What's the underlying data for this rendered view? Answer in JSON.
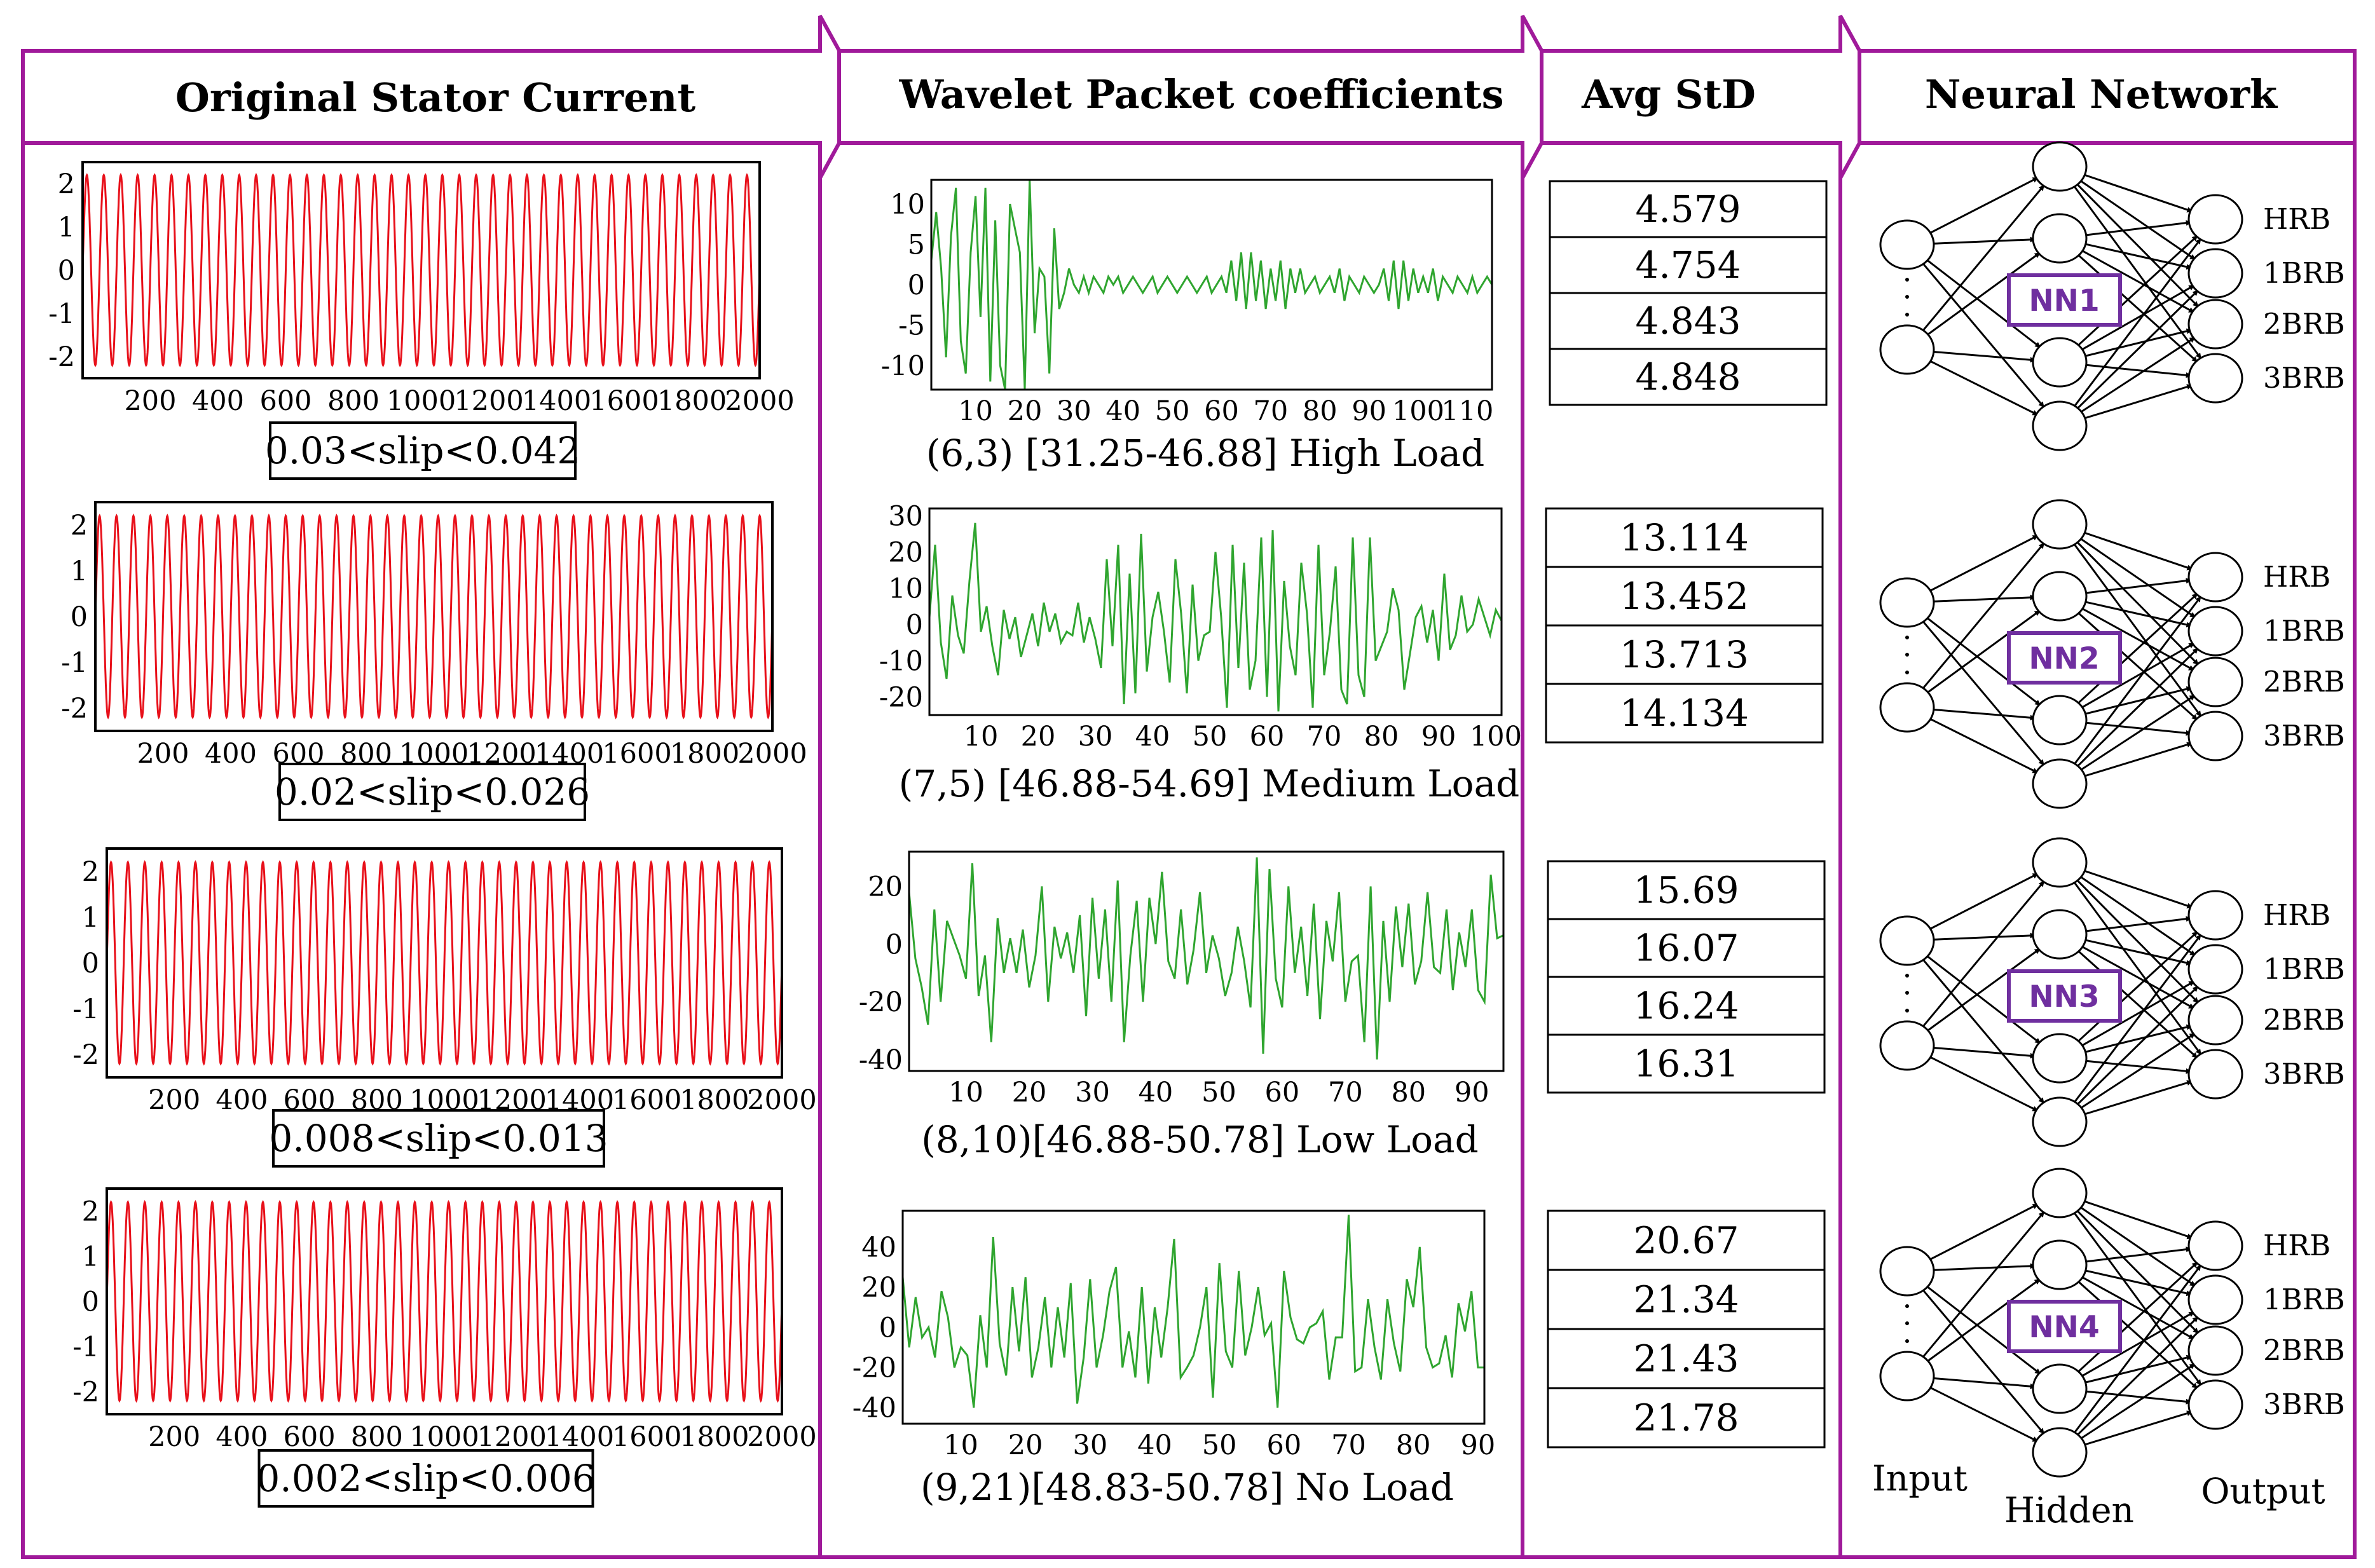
{
  "headers": {
    "col1": "Original Stator Current",
    "col2": "Wavelet Packet coefficients",
    "col3": "Avg StD",
    "col4": "Neural Network"
  },
  "colors": {
    "frame": "#a01a9a",
    "current_trace": "#e8101a",
    "wavelet_trace": "#2fa52f",
    "nn_box": "#6f2f9f"
  },
  "current_plots": [
    {
      "caption": "0.03<slip<0.042",
      "y_ticks": [
        "2",
        "1",
        "0",
        "-1",
        "-2"
      ],
      "x_ticks": [
        "200",
        "400",
        "600",
        "800",
        "1000",
        "1200",
        "1400",
        "1600",
        "1800",
        "2000"
      ],
      "chart_data": {
        "type": "line",
        "signal": "sinusoid",
        "amplitude": 2.2,
        "xlim": [
          0,
          2000
        ],
        "ylim": [
          -2.5,
          2.5
        ],
        "cycles": 40
      }
    },
    {
      "caption": "0.02<slip<0.026",
      "y_ticks": [
        "2",
        "1",
        "0",
        "-1",
        "-2"
      ],
      "x_ticks": [
        "200",
        "400",
        "600",
        "800",
        "1000",
        "1200",
        "1400",
        "1600",
        "1800",
        "2000"
      ],
      "chart_data": {
        "type": "line",
        "signal": "sinusoid",
        "amplitude": 2.2,
        "xlim": [
          0,
          2000
        ],
        "ylim": [
          -2.5,
          2.5
        ],
        "cycles": 40
      }
    },
    {
      "caption": "0.008<slip<0.013",
      "y_ticks": [
        "2",
        "1",
        "0",
        "-1",
        "-2"
      ],
      "x_ticks": [
        "200",
        "400",
        "600",
        "800",
        "1000",
        "1200",
        "1400",
        "1600",
        "1800",
        "2000"
      ],
      "chart_data": {
        "type": "line",
        "signal": "sinusoid",
        "amplitude": 2.2,
        "xlim": [
          0,
          2000
        ],
        "ylim": [
          -2.5,
          2.5
        ],
        "cycles": 40
      }
    },
    {
      "caption": "0.002<slip<0.006",
      "y_ticks": [
        "2",
        "1",
        "0",
        "-1",
        "-2"
      ],
      "x_ticks": [
        "200",
        "400",
        "600",
        "800",
        "1000",
        "1200",
        "1400",
        "1600",
        "1800",
        "2000"
      ],
      "chart_data": {
        "type": "line",
        "signal": "sinusoid",
        "amplitude": 2.2,
        "xlim": [
          0,
          2000
        ],
        "ylim": [
          -2.5,
          2.5
        ],
        "cycles": 40
      }
    }
  ],
  "wavelet_plots": [
    {
      "caption": "(6,3) [31.25-46.88]    High Load",
      "y_ticks": [
        "10",
        "5",
        "0",
        "-5",
        "-10"
      ],
      "x_ticks": [
        "10",
        "20",
        "30",
        "40",
        "50",
        "60",
        "70",
        "80",
        "90",
        "100",
        "110"
      ],
      "chart_data": {
        "type": "line",
        "xlim": [
          1,
          115
        ],
        "ylim": [
          -13,
          13
        ],
        "y": [
          3,
          9,
          2,
          -9,
          6,
          12,
          -7,
          -11,
          4,
          11,
          -4,
          12,
          -12,
          8,
          -10,
          -13,
          10,
          7,
          4,
          -13,
          13,
          -6,
          2,
          1,
          -11,
          7,
          -3,
          -1,
          2,
          0,
          -1,
          1,
          -1,
          1,
          0,
          -1,
          1,
          0,
          1,
          -1,
          0,
          1,
          0,
          -1,
          0,
          1,
          -1,
          0,
          1,
          0,
          -1,
          0,
          1,
          0,
          -1,
          0,
          1,
          -1,
          0,
          1,
          -1,
          3,
          -2,
          4,
          -3,
          4,
          -2,
          3,
          -3,
          2,
          -2,
          3,
          -3,
          2,
          -1,
          2,
          -1,
          0,
          1,
          -1,
          0,
          1,
          -1,
          2,
          -2,
          1,
          0,
          -1,
          1,
          0,
          -1,
          0,
          2,
          -2,
          3,
          -3,
          3,
          -2,
          2,
          -1,
          1,
          -1,
          2,
          -2,
          1,
          0,
          -1,
          1,
          0,
          -1,
          1,
          -1,
          0,
          1,
          0
        ]
      }
    },
    {
      "caption": "(7,5) [46.88-54.69] Medium Load",
      "y_ticks": [
        "30",
        "20",
        "10",
        "0",
        "-10",
        "-20"
      ],
      "x_ticks": [
        "10",
        "20",
        "30",
        "40",
        "50",
        "60",
        "70",
        "80",
        "90",
        "100"
      ],
      "chart_data": {
        "type": "line",
        "xlim": [
          1,
          101
        ],
        "ylim": [
          -25,
          32
        ],
        "y": [
          2,
          22,
          -5,
          -15,
          8,
          -3,
          -8,
          12,
          28,
          -2,
          5,
          -6,
          -14,
          4,
          -4,
          2,
          -9,
          -3,
          3,
          -6,
          6,
          -2,
          3,
          -5,
          -2,
          -3,
          6,
          -5,
          2,
          -4,
          -12,
          18,
          -6,
          22,
          -22,
          14,
          -19,
          25,
          -13,
          2,
          9,
          -2,
          -16,
          18,
          3,
          -19,
          11,
          -10,
          -3,
          -2,
          20,
          2,
          -23,
          22,
          -12,
          17,
          -18,
          -10,
          24,
          -20,
          26,
          -24,
          12,
          -6,
          -14,
          17,
          3,
          -23,
          22,
          -14,
          -2,
          16,
          -18,
          -22,
          24,
          -14,
          -20,
          24,
          -10,
          -6,
          -2,
          10,
          4,
          -18,
          -8,
          2,
          5,
          -5,
          4,
          -10,
          14,
          -7,
          -3,
          8,
          -2,
          0,
          7,
          2,
          -3,
          4,
          1
        ]
      }
    },
    {
      "caption": "(8,10)[46.88-50.78]  Low Load",
      "y_ticks": [
        "20",
        "0",
        "-20",
        "-40"
      ],
      "x_ticks": [
        "10",
        "20",
        "30",
        "40",
        "50",
        "60",
        "70",
        "80",
        "90"
      ],
      "chart_data": {
        "type": "line",
        "xlim": [
          1,
          95
        ],
        "ylim": [
          -44,
          32
        ],
        "y": [
          18,
          -5,
          -15,
          -28,
          12,
          -20,
          8,
          2,
          -4,
          -12,
          28,
          -18,
          -4,
          -34,
          9,
          -10,
          2,
          -10,
          5,
          -15,
          -4,
          20,
          -20,
          6,
          -5,
          4,
          -10,
          10,
          -25,
          16,
          -12,
          12,
          -20,
          22,
          -34,
          -4,
          15,
          -20,
          16,
          0,
          25,
          -6,
          -12,
          12,
          -14,
          -2,
          18,
          -10,
          3,
          -5,
          -18,
          -10,
          6,
          -6,
          -22,
          30,
          -38,
          26,
          -12,
          -22,
          20,
          -10,
          6,
          -18,
          14,
          -26,
          8,
          -6,
          18,
          -20,
          -6,
          -4,
          -34,
          20,
          -40,
          8,
          -20,
          13,
          -8,
          14,
          -14,
          -6,
          18,
          -8,
          -10,
          12,
          -16,
          4,
          -8,
          12,
          -16,
          -20,
          24,
          2,
          3
        ]
      }
    },
    {
      "caption": "(9,21)[48.83-50.78] No Load",
      "y_ticks": [
        "40",
        "20",
        "0",
        "-20",
        "-40"
      ],
      "x_ticks": [
        "10",
        "20",
        "30",
        "40",
        "50",
        "60",
        "70",
        "80",
        "90"
      ],
      "chart_data": {
        "type": "line",
        "xlim": [
          1,
          91
        ],
        "ylim": [
          -48,
          58
        ],
        "y": [
          25,
          -10,
          15,
          -5,
          0,
          -15,
          18,
          5,
          -20,
          -10,
          -14,
          -40,
          6,
          -20,
          45,
          -8,
          -24,
          20,
          -12,
          25,
          -25,
          -10,
          15,
          -20,
          10,
          -15,
          22,
          -38,
          -15,
          24,
          -20,
          -4,
          18,
          30,
          -20,
          -2,
          -25,
          20,
          -28,
          10,
          -15,
          10,
          44,
          -25,
          -20,
          -14,
          0,
          20,
          -35,
          32,
          -12,
          -20,
          28,
          -14,
          0,
          20,
          -4,
          2,
          -40,
          28,
          5,
          -6,
          -8,
          0,
          2,
          8,
          -26,
          -5,
          -5,
          56,
          -22,
          -20,
          14,
          -10,
          -26,
          14,
          -8,
          -22,
          24,
          10,
          40,
          -10,
          -20,
          -18,
          -4,
          -25,
          12,
          -2,
          18,
          -20,
          -20
        ]
      }
    }
  ],
  "std_tables": [
    [
      "4.579",
      "4.754",
      "4.843",
      "4.848"
    ],
    [
      "13.114",
      "13.452",
      "13.713",
      "14.134"
    ],
    [
      "15.69",
      "16.07",
      "16.24",
      "16.31"
    ],
    [
      "20.67",
      "21.34",
      "21.43",
      "21.78"
    ]
  ],
  "networks": [
    {
      "label": "NN1",
      "classes": [
        "HRB",
        "1BRB",
        "2BRB",
        "3BRB"
      ]
    },
    {
      "label": "NN2",
      "classes": [
        "HRB",
        "1BRB",
        "2BRB",
        "3BRB"
      ]
    },
    {
      "label": "NN3",
      "classes": [
        "HRB",
        "1BRB",
        "2BRB",
        "3BRB"
      ]
    },
    {
      "label": "NN4",
      "classes": [
        "HRB",
        "1BRB",
        "2BRB",
        "3BRB"
      ]
    }
  ],
  "layer_labels": {
    "input": "Input",
    "hidden": "Hidden",
    "output": "Output"
  }
}
